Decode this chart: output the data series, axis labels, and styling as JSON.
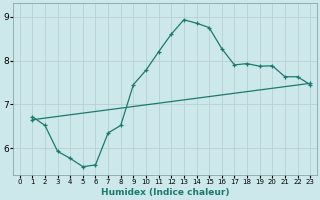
{
  "xlabel": "Humidex (Indice chaleur)",
  "ylabel": "",
  "xlim": [
    -0.5,
    23.5
  ],
  "ylim": [
    5.4,
    9.3
  ],
  "xticks": [
    0,
    1,
    2,
    3,
    4,
    5,
    6,
    7,
    8,
    9,
    10,
    11,
    12,
    13,
    14,
    15,
    16,
    17,
    18,
    19,
    20,
    21,
    22,
    23
  ],
  "yticks": [
    6,
    7,
    8,
    9
  ],
  "bg_color": "#cce8ea",
  "line_color": "#1a7a6e",
  "grid_color": "#b8d0d2",
  "curve1_x": [
    1,
    2,
    3,
    4,
    5,
    6,
    7,
    8,
    9,
    10,
    11,
    12,
    13,
    14,
    15,
    16,
    17,
    18,
    19,
    20,
    21,
    22,
    23
  ],
  "curve1_y": [
    6.72,
    6.52,
    5.93,
    5.77,
    5.58,
    5.62,
    6.35,
    6.52,
    7.45,
    7.78,
    8.2,
    8.6,
    8.93,
    8.85,
    8.75,
    8.27,
    7.9,
    7.93,
    7.87,
    7.88,
    7.63,
    7.63,
    7.45
  ],
  "curve2_x": [
    1,
    23
  ],
  "curve2_y": [
    6.65,
    7.48
  ]
}
